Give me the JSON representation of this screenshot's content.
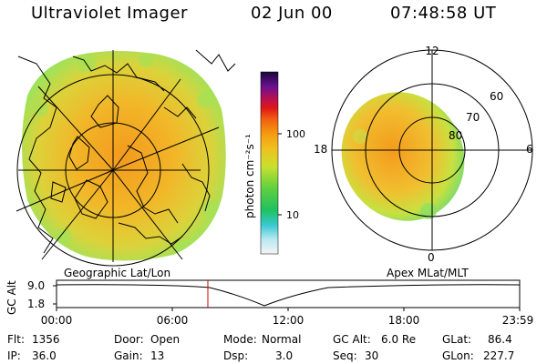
{
  "header": {
    "instrument": "Ultraviolet Imager",
    "date": "02 Jun 00",
    "time": "07:48:58 UT"
  },
  "colorbar": {
    "unit_label": "photon cm⁻²s⁻¹",
    "ticks": [
      "100",
      "10"
    ]
  },
  "panels": {
    "left_label": "Geographic Lat/Lon",
    "right_label": "Apex MLat/MLT"
  },
  "polar_plot": {
    "mlt_labels": [
      "12",
      "18",
      "6",
      "0"
    ],
    "mlat_labels": [
      "60",
      "70",
      "80"
    ]
  },
  "altitude_plot": {
    "axis_title": "GC Alt",
    "y_ticks": [
      "9.0",
      "1.8"
    ],
    "x_ticks": [
      "00:00",
      "06:00",
      "12:00",
      "18:00",
      "23:59"
    ]
  },
  "footer": {
    "row1": [
      {
        "label": "Flt:",
        "value": "1356"
      },
      {
        "label": "Door:",
        "value": "Open"
      },
      {
        "label": "Mode:",
        "value": "Normal"
      },
      {
        "label": "GC Alt:",
        "value": "6.0 Re"
      },
      {
        "label": "GLat:",
        "value": "86.4"
      }
    ],
    "row2": [
      {
        "label": "IP:",
        "value": "36.0"
      },
      {
        "label": "Gain:",
        "value": "13"
      },
      {
        "label": "Dsp:",
        "value": "3.0"
      },
      {
        "label": "Seq:",
        "value": "30"
      },
      {
        "label": "GLon:",
        "value": "227.7"
      }
    ]
  },
  "colors": {
    "image_core": "#f4a020",
    "image_mid": "#e8c830",
    "image_edge": "#b8e048",
    "current_time_marker": "#cc0000"
  }
}
